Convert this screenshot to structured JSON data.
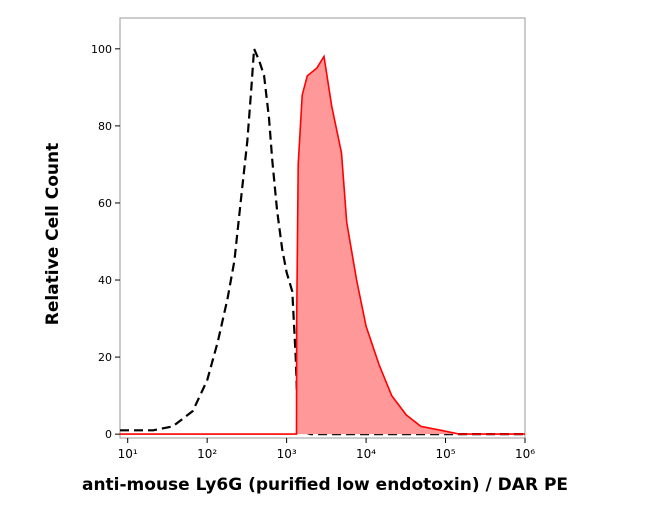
{
  "chart_data": {
    "type": "line",
    "x_label": "anti-mouse Ly6G (purified low endotoxin) / DAR PE",
    "y_label": "Relative Cell Count",
    "xscale": "log",
    "xlim": [
      8,
      1000000
    ],
    "ylim": [
      -1,
      108
    ],
    "xticks": [
      {
        "value": 10,
        "label": "10¹"
      },
      {
        "value": 100,
        "label": "10²"
      },
      {
        "value": 1000,
        "label": "10³"
      },
      {
        "value": 10000,
        "label": "10⁴"
      },
      {
        "value": 100000,
        "label": "10⁵"
      },
      {
        "value": 1000000,
        "label": "10⁶"
      }
    ],
    "yticks": [
      0,
      20,
      40,
      60,
      80,
      100
    ],
    "series": [
      {
        "color": "#000000",
        "dashed": true,
        "filled": false,
        "x": [
          8,
          21,
          37,
          66,
          100,
          136,
          180,
          220,
          270,
          320,
          360,
          390,
          450,
          520,
          600,
          660,
          760,
          880,
          1000,
          1180,
          1300,
          1400,
          2000,
          10000,
          100000,
          1000000
        ],
        "values": [
          1,
          1,
          2,
          6,
          14,
          24,
          35,
          45,
          62,
          76,
          90,
          100,
          97,
          93,
          82,
          71,
          58,
          48,
          42,
          37,
          20,
          1,
          0,
          0,
          0,
          0
        ]
      },
      {
        "color": "#ff0000",
        "dashed": false,
        "filled": true,
        "fill_color": "#ff9999",
        "x": [
          8,
          1000,
          1330,
          1340,
          1400,
          1570,
          1820,
          2400,
          2950,
          3700,
          4900,
          5700,
          7600,
          10000,
          14600,
          21000,
          32000,
          49000,
          88000,
          150000,
          1000000
        ],
        "values": [
          0,
          0,
          0,
          30,
          70,
          88,
          93,
          95,
          98,
          85,
          73,
          55,
          40,
          28,
          18,
          10,
          5,
          2,
          1,
          0,
          0
        ]
      }
    ]
  }
}
